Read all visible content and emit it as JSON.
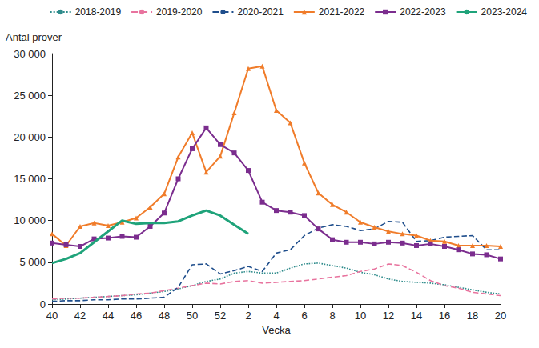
{
  "chart_data": {
    "type": "line",
    "y_label": "Antal prover",
    "x_label": "Vecka",
    "categories": [
      "40",
      null,
      "42",
      null,
      "44",
      null,
      "46",
      null,
      "48",
      null,
      "50",
      null,
      "52",
      null,
      "2",
      null,
      "4",
      null,
      "6",
      null,
      "8",
      null,
      "10",
      null,
      "12",
      null,
      "14",
      null,
      "16",
      null,
      "18",
      null,
      "20"
    ],
    "ylim": [
      0,
      30000
    ],
    "yticks": [
      0,
      {
        "value": 5000,
        "label": "5 000"
      },
      {
        "value": 10000,
        "label": "10 000"
      },
      {
        "value": 15000,
        "label": "15 000"
      },
      {
        "value": 20000,
        "label": "20 000"
      },
      {
        "value": 25000,
        "label": "25 000"
      },
      {
        "value": 30000,
        "label": "30 000"
      }
    ],
    "grid": false,
    "legend": "top",
    "series": [
      {
        "name": "2018-2019",
        "color": "#2e8b8b",
        "line_style": "dotted",
        "marker": "none",
        "values": [
          500,
          600,
          700,
          800,
          900,
          1000,
          1100,
          1300,
          1500,
          1800,
          2200,
          2700,
          3000,
          3700,
          3900,
          3700,
          3700,
          4300,
          4800,
          4900,
          4600,
          4300,
          3800,
          3500,
          3000,
          2700,
          2600,
          2500,
          2300,
          2000,
          1700,
          1400,
          1200
        ]
      },
      {
        "name": "2019-2020",
        "color": "#e8739e",
        "line_style": "dashed",
        "marker": "none",
        "values": [
          600,
          700,
          700,
          800,
          900,
          1000,
          1200,
          1300,
          1600,
          1900,
          2200,
          2500,
          2400,
          2700,
          2800,
          2500,
          2600,
          2700,
          2800,
          3000,
          3200,
          3400,
          3900,
          4200,
          4800,
          4600,
          3800,
          2800,
          2200,
          1900,
          1400,
          1200,
          1000
        ]
      },
      {
        "name": "2020-2021",
        "color": "#1f4e8c",
        "line_style": "dashed",
        "marker": "none",
        "values": [
          300,
          400,
          400,
          500,
          500,
          600,
          600,
          700,
          800,
          2000,
          4700,
          4800,
          3600,
          4000,
          4500,
          3900,
          6100,
          6500,
          8200,
          9100,
          9500,
          9300,
          8800,
          9000,
          9900,
          9800,
          7500,
          7600,
          8000,
          8100,
          8200,
          6500,
          6500
        ]
      },
      {
        "name": "2021-2022",
        "color": "#f07c2a",
        "line_style": "solid",
        "marker": "triangle",
        "values": [
          8400,
          7000,
          9300,
          9700,
          9400,
          9800,
          10300,
          11600,
          13200,
          17600,
          20500,
          15800,
          17700,
          22900,
          28200,
          28500,
          23200,
          21700,
          16900,
          13300,
          11900,
          11000,
          9800,
          9200,
          8700,
          8400,
          8200,
          7600,
          7500,
          7000,
          7000,
          7000,
          6900
        ]
      },
      {
        "name": "2022-2023",
        "color": "#7b2d8e",
        "line_style": "solid",
        "marker": "square",
        "values": [
          7300,
          7100,
          6900,
          7800,
          7900,
          8100,
          8000,
          9300,
          10900,
          15000,
          18600,
          21100,
          19100,
          18100,
          16000,
          12200,
          11200,
          11000,
          10600,
          9000,
          7700,
          7400,
          7400,
          7200,
          7400,
          7300,
          7000,
          7200,
          6900,
          6500,
          6000,
          5900,
          5400
        ]
      },
      {
        "name": "2023-2024",
        "color": "#1fa37a",
        "line_style": "solid",
        "marker": "none",
        "values": [
          4900,
          5400,
          6100,
          7400,
          8700,
          10000,
          9600,
          9700,
          9700,
          9900,
          10600,
          11200,
          10600,
          9500,
          8400,
          null,
          null,
          null,
          null,
          null,
          null,
          null,
          null,
          null,
          null,
          null,
          null,
          null,
          null,
          null,
          null,
          null,
          null
        ]
      }
    ]
  }
}
